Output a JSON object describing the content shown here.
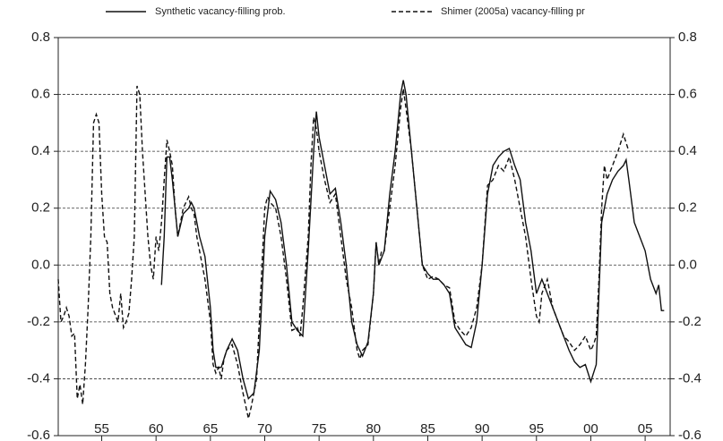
{
  "chart_data": {
    "type": "line",
    "legend": "top",
    "grid": true,
    "xlim": [
      1951,
      2007.3
    ],
    "xticks": [
      {
        "value": 1955,
        "label": "55"
      },
      {
        "value": 1960,
        "label": "60"
      },
      {
        "value": 1965,
        "label": "65"
      },
      {
        "value": 1970,
        "label": "70"
      },
      {
        "value": 1975,
        "label": "75"
      },
      {
        "value": 1980,
        "label": "80"
      },
      {
        "value": 1985,
        "label": "85"
      },
      {
        "value": 1990,
        "label": "90"
      },
      {
        "value": 1995,
        "label": "95"
      },
      {
        "value": 2000,
        "label": "00"
      },
      {
        "value": 2005,
        "label": "05"
      }
    ],
    "ylim": [
      -0.6,
      0.8
    ],
    "yticks": [
      -0.6,
      -0.4,
      -0.2,
      {
        "value": 0,
        "label": "0.0"
      },
      0.2,
      0.4,
      0.6,
      0.8
    ],
    "series": [
      {
        "name": "Synthetic vacancy-filling prob.",
        "color": "#111111",
        "style": "solid",
        "x": [
          1960.5,
          1960.75,
          1961,
          1961.25,
          1961.5,
          1962,
          1962.5,
          1963,
          1963.25,
          1963.5,
          1964,
          1964.5,
          1965,
          1965.25,
          1965.5,
          1966,
          1966.5,
          1967,
          1967.5,
          1968,
          1968.5,
          1969,
          1969.5,
          1970,
          1970.5,
          1971,
          1971.5,
          1972,
          1972.5,
          1973,
          1973.5,
          1974,
          1974.5,
          1974.75,
          1975,
          1975.5,
          1976,
          1976.5,
          1977,
          1977.5,
          1978,
          1978.5,
          1979,
          1979.5,
          1980,
          1980.25,
          1980.5,
          1981,
          1981.5,
          1982,
          1982.5,
          1982.75,
          1983,
          1983.5,
          1984,
          1984.5,
          1985,
          1985.5,
          1986,
          1986.5,
          1987,
          1987.5,
          1988,
          1988.5,
          1989,
          1989.5,
          1990,
          1990.5,
          1991,
          1991.5,
          1992,
          1992.5,
          1993,
          1993.5,
          1994,
          1994.5,
          1995,
          1995.5,
          1996,
          1996.5,
          1997,
          1997.5,
          1998,
          1998.5,
          1999,
          1999.5,
          2000,
          2000.25,
          2000.5,
          2000.75,
          2001,
          2001.5,
          2002,
          2002.5,
          2003,
          2003.25,
          2003.5,
          2004,
          2004.5,
          2005,
          2005.5,
          2006,
          2006.25,
          2006.5,
          2006.75
        ],
        "values": [
          -0.07,
          0.1,
          0.38,
          0.38,
          0.3,
          0.1,
          0.18,
          0.2,
          0.22,
          0.2,
          0.1,
          0.03,
          -0.15,
          -0.3,
          -0.36,
          -0.36,
          -0.3,
          -0.26,
          -0.3,
          -0.4,
          -0.47,
          -0.45,
          -0.3,
          0.1,
          0.26,
          0.23,
          0.15,
          0,
          -0.2,
          -0.23,
          -0.25,
          0.05,
          0.4,
          0.54,
          0.45,
          0.35,
          0.25,
          0.27,
          0.15,
          0,
          -0.2,
          -0.28,
          -0.32,
          -0.27,
          -0.1,
          0.08,
          0,
          0.05,
          0.25,
          0.4,
          0.6,
          0.65,
          0.6,
          0.4,
          0.2,
          0,
          -0.03,
          -0.05,
          -0.05,
          -0.07,
          -0.1,
          -0.22,
          -0.25,
          -0.28,
          -0.29,
          -0.2,
          0,
          0.25,
          0.35,
          0.38,
          0.4,
          0.41,
          0.35,
          0.3,
          0.15,
          0.05,
          -0.1,
          -0.05,
          -0.1,
          -0.15,
          -0.2,
          -0.25,
          -0.3,
          -0.34,
          -0.36,
          -0.35,
          -0.41,
          -0.38,
          -0.35,
          -0.1,
          0.15,
          0.25,
          0.3,
          0.33,
          0.35,
          0.37,
          0.3,
          0.15,
          0.1,
          0.05,
          -0.05,
          -0.1,
          -0.07,
          -0.16,
          -0.16
        ]
      },
      {
        "name": "Shimer (2005a) vacancy-filling pr",
        "color": "#111111",
        "style": "dashed",
        "x": [
          1951,
          1951.25,
          1951.5,
          1951.75,
          1952,
          1952.25,
          1952.5,
          1952.75,
          1953,
          1953.25,
          1953.5,
          1953.75,
          1954,
          1954.25,
          1954.5,
          1954.75,
          1955,
          1955.25,
          1955.5,
          1955.75,
          1956,
          1956.5,
          1956.75,
          1957,
          1957.25,
          1957.5,
          1957.75,
          1958,
          1958.25,
          1958.5,
          1958.75,
          1959,
          1959.25,
          1959.5,
          1959.75,
          1960,
          1960.25,
          1960.5,
          1960.75,
          1961,
          1961.25,
          1961.5,
          1961.75,
          1962,
          1962.25,
          1962.5,
          1962.75,
          1963,
          1963.25,
          1963.5,
          1963.75,
          1964,
          1964.5,
          1965,
          1965.25,
          1965.5,
          1965.75,
          1966,
          1966.25,
          1966.5,
          1967,
          1967.5,
          1968,
          1968.5,
          1968.75,
          1969,
          1969.25,
          1969.5,
          1969.75,
          1970,
          1970.25,
          1970.5,
          1971,
          1971.5,
          1972,
          1972.5,
          1973,
          1973.25,
          1973.5,
          1974,
          1974.25,
          1974.5,
          1974.75,
          1975,
          1975.5,
          1976,
          1976.5,
          1977,
          1977.5,
          1978,
          1978.5,
          1978.75,
          1979,
          1979.5,
          1980,
          1980.25,
          1980.5,
          1980.75,
          1981,
          1981.5,
          1982,
          1982.5,
          1982.75,
          1983,
          1983.5,
          1984,
          1984.5,
          1985,
          1985.5,
          1986,
          1986.5,
          1987,
          1987.5,
          1988,
          1988.5,
          1989,
          1989.5,
          1990,
          1990.5,
          1991,
          1991.5,
          1992,
          1992.5,
          1993,
          1993.5,
          1994,
          1994.5,
          1995,
          1995.25,
          1995.5,
          1996,
          1996.5,
          1997,
          1997.5,
          1998,
          1998.5,
          1999,
          1999.5,
          2000,
          2000.25,
          2000.5,
          2000.75,
          2001,
          2001.25,
          2001.5,
          2002,
          2002.5,
          2003,
          2003.5
        ],
        "values": [
          -0.05,
          -0.2,
          -0.18,
          -0.15,
          -0.18,
          -0.25,
          -0.24,
          -0.47,
          -0.42,
          -0.49,
          -0.35,
          -0.15,
          0.1,
          0.5,
          0.53,
          0.5,
          0.25,
          0.1,
          0.08,
          -0.1,
          -0.15,
          -0.2,
          -0.1,
          -0.22,
          -0.2,
          -0.17,
          -0.05,
          0.1,
          0.63,
          0.6,
          0.4,
          0.25,
          0.1,
          0,
          -0.05,
          0.1,
          0.05,
          0.15,
          0.3,
          0.44,
          0.4,
          0.35,
          0.2,
          0.1,
          0.15,
          0.2,
          0.22,
          0.24,
          0.2,
          0.18,
          0.1,
          0.05,
          -0.05,
          -0.2,
          -0.35,
          -0.38,
          -0.36,
          -0.4,
          -0.33,
          -0.3,
          -0.28,
          -0.35,
          -0.45,
          -0.54,
          -0.5,
          -0.45,
          -0.4,
          -0.2,
          0,
          0.2,
          0.24,
          0.22,
          0.2,
          0.1,
          -0.05,
          -0.23,
          -0.22,
          -0.25,
          -0.15,
          0.1,
          0.35,
          0.52,
          0.48,
          0.4,
          0.3,
          0.22,
          0.25,
          0.1,
          -0.05,
          -0.15,
          -0.3,
          -0.33,
          -0.3,
          -0.28,
          -0.1,
          0.08,
          0,
          0.05,
          0.05,
          0.2,
          0.35,
          0.55,
          0.62,
          0.55,
          0.4,
          0.2,
          0,
          -0.05,
          -0.04,
          -0.05,
          -0.07,
          -0.08,
          -0.2,
          -0.23,
          -0.25,
          -0.22,
          -0.15,
          0,
          0.28,
          0.3,
          0.35,
          0.33,
          0.38,
          0.3,
          0.2,
          0.1,
          -0.05,
          -0.18,
          -0.2,
          -0.1,
          -0.05,
          -0.15,
          -0.2,
          -0.25,
          -0.27,
          -0.3,
          -0.28,
          -0.25,
          -0.3,
          -0.28,
          -0.25,
          -0.05,
          0.2,
          0.35,
          0.3,
          0.35,
          0.4,
          0.46,
          0.4
        ]
      }
    ]
  }
}
